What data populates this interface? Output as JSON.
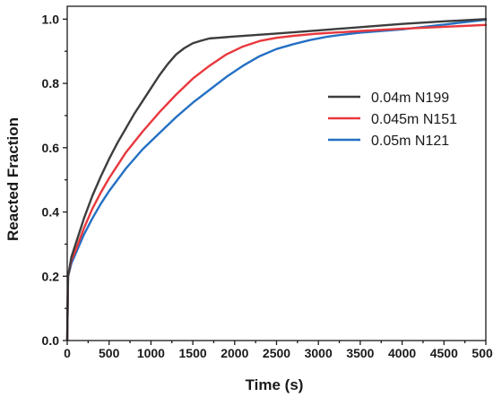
{
  "chart_data": {
    "type": "line",
    "xlabel": "Time (s)",
    "ylabel": "Reacted Fraction",
    "xlim": [
      0,
      5000
    ],
    "ylim": [
      0,
      1.04
    ],
    "xticks": [
      0,
      500,
      1000,
      1500,
      2000,
      2500,
      3000,
      3500,
      4000,
      4500,
      5000
    ],
    "yticks": [
      0.0,
      0.2,
      0.4,
      0.6,
      0.8,
      1.0
    ],
    "xtick_labels": [
      "0",
      "500",
      "1000",
      "1500",
      "2000",
      "2500",
      "3000",
      "3500",
      "4000",
      "4500",
      "5000"
    ],
    "ytick_labels": [
      "0.0",
      "0.2",
      "0.4",
      "0.6",
      "0.8",
      "1.0"
    ],
    "grid": false,
    "legend_position": "right",
    "series": [
      {
        "name": "0.04m N199",
        "color": "#3d3d3d",
        "x": [
          0,
          10,
          50,
          100,
          200,
          300,
          400,
          500,
          600,
          700,
          800,
          900,
          1000,
          1100,
          1200,
          1300,
          1400,
          1500,
          1600,
          1700,
          1800,
          2000,
          2500,
          3000,
          3500,
          4000,
          4500,
          5000
        ],
        "y": [
          0,
          0.2,
          0.26,
          0.3,
          0.38,
          0.45,
          0.51,
          0.565,
          0.615,
          0.66,
          0.705,
          0.745,
          0.785,
          0.825,
          0.86,
          0.89,
          0.91,
          0.925,
          0.933,
          0.94,
          0.942,
          0.946,
          0.955,
          0.965,
          0.975,
          0.985,
          0.993,
          1.0
        ]
      },
      {
        "name": "0.045m N151",
        "color": "#e8383d",
        "x": [
          0,
          10,
          50,
          100,
          200,
          300,
          400,
          500,
          700,
          900,
          1100,
          1300,
          1500,
          1700,
          1900,
          2100,
          2300,
          2500,
          2700,
          3000,
          3500,
          4000,
          4500,
          5000
        ],
        "y": [
          0,
          0.2,
          0.25,
          0.28,
          0.35,
          0.41,
          0.46,
          0.505,
          0.585,
          0.65,
          0.71,
          0.765,
          0.815,
          0.855,
          0.89,
          0.915,
          0.932,
          0.942,
          0.948,
          0.955,
          0.963,
          0.97,
          0.976,
          0.982
        ]
      },
      {
        "name": "0.05m N121",
        "color": "#2470c3",
        "x": [
          0,
          10,
          50,
          100,
          200,
          300,
          400,
          500,
          700,
          900,
          1100,
          1300,
          1500,
          1700,
          1900,
          2100,
          2300,
          2500,
          2700,
          2900,
          3100,
          3300,
          3500,
          4000,
          4500,
          5000
        ],
        "y": [
          0,
          0.2,
          0.24,
          0.27,
          0.33,
          0.38,
          0.425,
          0.465,
          0.535,
          0.595,
          0.645,
          0.695,
          0.74,
          0.78,
          0.82,
          0.855,
          0.885,
          0.907,
          0.922,
          0.935,
          0.945,
          0.952,
          0.958,
          0.968,
          0.983,
          0.998
        ]
      }
    ]
  }
}
